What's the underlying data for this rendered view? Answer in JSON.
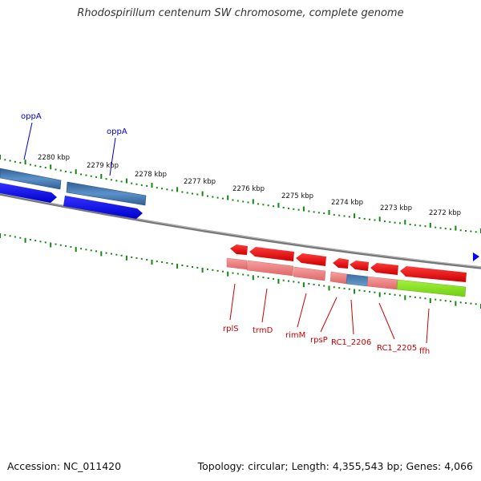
{
  "title": "Rhodospirillum centenum SW chromosome, complete genome",
  "accession": "Accession: NC_011420",
  "topology": "Topology: circular; Length: 4,355,543 bp; Genes: 4,066",
  "colors": {
    "top_strand_genes": "#0000ff",
    "top_strand_cds": "#4a7fb5",
    "bottom_strand_genes": "#ee0000",
    "bottom_strand_cds": "#f08080",
    "rna_feature": "#7ee820",
    "tick": "#118811",
    "backbone": "#888888",
    "top_label": "#0000cc",
    "bottom_label": "#cc0000"
  },
  "kbp_labels": [
    "2280 kbp",
    "2279 kbp",
    "2278 kbp",
    "2277 kbp",
    "2276 kbp",
    "2275 kbp",
    "2274 kbp",
    "2273 kbp",
    "2272 kbp"
  ],
  "top_gene_labels": [
    "oppA",
    "oppA"
  ],
  "bottom_gene_labels": [
    "rplS",
    "trmD",
    "rimM",
    "rpsP",
    "RC1_2206",
    "RC1_2205",
    "ffh"
  ]
}
